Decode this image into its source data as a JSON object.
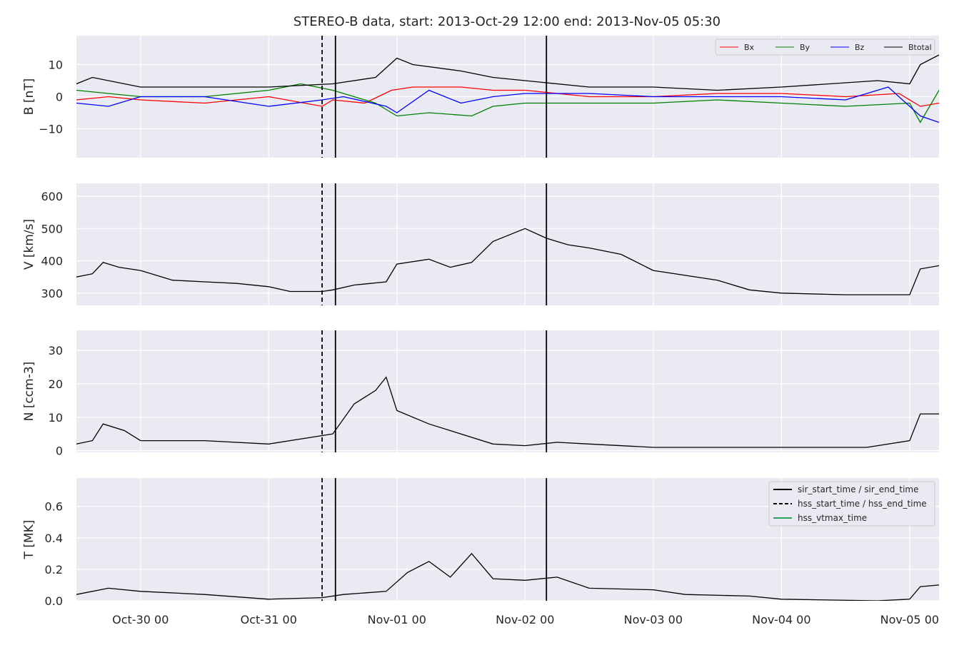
{
  "chart_data": {
    "type": "line",
    "title": "STEREO-B data, start: 2013-Oct-29 12:00  end: 2013-Nov-05 05:30",
    "x_start": "2013-10-29T12:00",
    "x_end": "2013-11-05T05:30",
    "x_ticks": [
      {
        "t": "2013-10-30T00:00",
        "label": "Oct-30 00"
      },
      {
        "t": "2013-10-31T00:00",
        "label": "Oct-31 00"
      },
      {
        "t": "2013-11-01T00:00",
        "label": "Nov-01 00"
      },
      {
        "t": "2013-11-02T00:00",
        "label": "Nov-02 00"
      },
      {
        "t": "2013-11-03T00:00",
        "label": "Nov-03 00"
      },
      {
        "t": "2013-11-04T00:00",
        "label": "Nov-04 00"
      },
      {
        "t": "2013-11-05T00:00",
        "label": "Nov-05 00"
      }
    ],
    "event_lines": [
      {
        "t": "2013-10-31T10:00",
        "style": "dashed",
        "kind": "hss_start_time"
      },
      {
        "t": "2013-10-31T12:30",
        "style": "solid",
        "kind": "sir_start_time"
      },
      {
        "t": "2013-11-02T04:00",
        "style": "solid",
        "kind": "sir_end_time"
      }
    ],
    "grid": true,
    "panels": [
      {
        "ylabel": "B [nT]",
        "ylim": [
          -19,
          19
        ],
        "yticks": [
          {
            "v": 10,
            "label": "10"
          },
          {
            "v": 0,
            "label": "0"
          },
          {
            "v": -10,
            "label": "−10"
          }
        ],
        "legend": "top-right",
        "series": [
          {
            "name": "Bx",
            "color": "#ff0000",
            "points": [
              [
                "2013-10-29T12:00",
                -1
              ],
              [
                "2013-10-29T18:00",
                0
              ],
              [
                "2013-10-30T00:00",
                -1
              ],
              [
                "2013-10-30T12:00",
                -2
              ],
              [
                "2013-10-31T00:00",
                0
              ],
              [
                "2013-10-31T10:00",
                -3
              ],
              [
                "2013-10-31T12:00",
                -1
              ],
              [
                "2013-10-31T18:00",
                -2
              ],
              [
                "2013-10-31T23:00",
                2
              ],
              [
                "2013-11-01T03:00",
                3
              ],
              [
                "2013-11-01T12:00",
                3
              ],
              [
                "2013-11-01T18:00",
                2
              ],
              [
                "2013-11-02T00:00",
                2
              ],
              [
                "2013-11-02T06:00",
                1
              ],
              [
                "2013-11-02T12:00",
                0
              ],
              [
                "2013-11-03T00:00",
                0
              ],
              [
                "2013-11-03T12:00",
                1
              ],
              [
                "2013-11-04T00:00",
                1
              ],
              [
                "2013-11-04T12:00",
                0
              ],
              [
                "2013-11-04T22:00",
                1
              ],
              [
                "2013-11-05T02:00",
                -3
              ],
              [
                "2013-11-05T05:30",
                -2
              ]
            ]
          },
          {
            "name": "By",
            "color": "#008000",
            "points": [
              [
                "2013-10-29T12:00",
                2
              ],
              [
                "2013-10-29T18:00",
                1
              ],
              [
                "2013-10-30T00:00",
                0
              ],
              [
                "2013-10-30T12:00",
                0
              ],
              [
                "2013-10-31T00:00",
                2
              ],
              [
                "2013-10-31T06:00",
                4
              ],
              [
                "2013-10-31T12:00",
                2
              ],
              [
                "2013-10-31T20:00",
                -2
              ],
              [
                "2013-11-01T00:00",
                -6
              ],
              [
                "2013-11-01T06:00",
                -5
              ],
              [
                "2013-11-01T14:00",
                -6
              ],
              [
                "2013-11-01T18:00",
                -3
              ],
              [
                "2013-11-02T00:00",
                -2
              ],
              [
                "2013-11-02T12:00",
                -2
              ],
              [
                "2013-11-03T00:00",
                -2
              ],
              [
                "2013-11-03T12:00",
                -1
              ],
              [
                "2013-11-04T00:00",
                -2
              ],
              [
                "2013-11-04T12:00",
                -3
              ],
              [
                "2013-11-05T00:00",
                -2
              ],
              [
                "2013-11-05T02:00",
                -8
              ],
              [
                "2013-11-05T05:30",
                2
              ]
            ]
          },
          {
            "name": "Bz",
            "color": "#0000ff",
            "points": [
              [
                "2013-10-29T12:00",
                -2
              ],
              [
                "2013-10-29T18:00",
                -3
              ],
              [
                "2013-10-30T00:00",
                0
              ],
              [
                "2013-10-30T12:00",
                0
              ],
              [
                "2013-10-31T00:00",
                -3
              ],
              [
                "2013-10-31T10:00",
                -1
              ],
              [
                "2013-10-31T14:00",
                0
              ],
              [
                "2013-10-31T22:00",
                -3
              ],
              [
                "2013-11-01T00:00",
                -5
              ],
              [
                "2013-11-01T06:00",
                2
              ],
              [
                "2013-11-01T12:00",
                -2
              ],
              [
                "2013-11-01T18:00",
                0
              ],
              [
                "2013-11-02T00:00",
                1
              ],
              [
                "2013-11-02T12:00",
                1
              ],
              [
                "2013-11-03T00:00",
                0
              ],
              [
                "2013-11-03T12:00",
                0
              ],
              [
                "2013-11-04T00:00",
                0
              ],
              [
                "2013-11-04T12:00",
                -1
              ],
              [
                "2013-11-04T20:00",
                3
              ],
              [
                "2013-11-05T02:00",
                -6
              ],
              [
                "2013-11-05T05:30",
                -8
              ]
            ]
          },
          {
            "name": "Btotal",
            "color": "#000000",
            "points": [
              [
                "2013-10-29T12:00",
                4
              ],
              [
                "2013-10-29T15:00",
                6
              ],
              [
                "2013-10-30T00:00",
                3
              ],
              [
                "2013-10-30T12:00",
                3
              ],
              [
                "2013-10-31T00:00",
                3
              ],
              [
                "2013-10-31T12:00",
                4
              ],
              [
                "2013-10-31T20:00",
                6
              ],
              [
                "2013-11-01T00:00",
                12
              ],
              [
                "2013-11-01T03:00",
                10
              ],
              [
                "2013-11-01T12:00",
                8
              ],
              [
                "2013-11-01T18:00",
                6
              ],
              [
                "2013-11-02T00:00",
                5
              ],
              [
                "2013-11-02T12:00",
                3
              ],
              [
                "2013-11-03T00:00",
                3
              ],
              [
                "2013-11-03T12:00",
                2
              ],
              [
                "2013-11-04T00:00",
                3
              ],
              [
                "2013-11-04T18:00",
                5
              ],
              [
                "2013-11-05T00:00",
                4
              ],
              [
                "2013-11-05T02:00",
                10
              ],
              [
                "2013-11-05T05:30",
                13
              ]
            ]
          }
        ]
      },
      {
        "ylabel": "V [km/s]",
        "ylim": [
          262,
          640
        ],
        "yticks": [
          {
            "v": 600,
            "label": "600"
          },
          {
            "v": 500,
            "label": "500"
          },
          {
            "v": 400,
            "label": "400"
          },
          {
            "v": 300,
            "label": "300"
          }
        ],
        "series": [
          {
            "name": "",
            "color": "#000000",
            "points": [
              [
                "2013-10-29T12:00",
                350
              ],
              [
                "2013-10-29T15:00",
                360
              ],
              [
                "2013-10-29T17:00",
                395
              ],
              [
                "2013-10-29T20:00",
                380
              ],
              [
                "2013-10-30T00:00",
                370
              ],
              [
                "2013-10-30T06:00",
                340
              ],
              [
                "2013-10-30T12:00",
                335
              ],
              [
                "2013-10-30T18:00",
                330
              ],
              [
                "2013-10-31T00:00",
                320
              ],
              [
                "2013-10-31T04:00",
                305
              ],
              [
                "2013-10-31T10:00",
                305
              ],
              [
                "2013-10-31T12:00",
                310
              ],
              [
                "2013-10-31T16:00",
                325
              ],
              [
                "2013-10-31T22:00",
                335
              ],
              [
                "2013-11-01T00:00",
                390
              ],
              [
                "2013-11-01T06:00",
                405
              ],
              [
                "2013-11-01T10:00",
                380
              ],
              [
                "2013-11-01T14:00",
                395
              ],
              [
                "2013-11-01T18:00",
                460
              ],
              [
                "2013-11-02T00:00",
                500
              ],
              [
                "2013-11-02T04:00",
                470
              ],
              [
                "2013-11-02T08:00",
                450
              ],
              [
                "2013-11-02T12:00",
                440
              ],
              [
                "2013-11-02T18:00",
                420
              ],
              [
                "2013-11-03T00:00",
                370
              ],
              [
                "2013-11-03T12:00",
                340
              ],
              [
                "2013-11-03T18:00",
                310
              ],
              [
                "2013-11-04T00:00",
                300
              ],
              [
                "2013-11-04T12:00",
                295
              ],
              [
                "2013-11-05T00:00",
                295
              ],
              [
                "2013-11-05T02:00",
                375
              ],
              [
                "2013-11-05T05:30",
                385
              ]
            ]
          }
        ]
      },
      {
        "ylabel": "N [ccm-3]",
        "ylim": [
          -0.5,
          36
        ],
        "yticks": [
          {
            "v": 30,
            "label": "30"
          },
          {
            "v": 20,
            "label": "20"
          },
          {
            "v": 10,
            "label": "10"
          },
          {
            "v": 0,
            "label": "0"
          }
        ],
        "series": [
          {
            "name": "",
            "color": "#000000",
            "points": [
              [
                "2013-10-29T12:00",
                2
              ],
              [
                "2013-10-29T15:00",
                3
              ],
              [
                "2013-10-29T17:00",
                8
              ],
              [
                "2013-10-29T21:00",
                6
              ],
              [
                "2013-10-30T00:00",
                3
              ],
              [
                "2013-10-30T12:00",
                3
              ],
              [
                "2013-10-31T00:00",
                2
              ],
              [
                "2013-10-31T08:00",
                4
              ],
              [
                "2013-10-31T12:00",
                5
              ],
              [
                "2013-10-31T16:00",
                14
              ],
              [
                "2013-10-31T20:00",
                18
              ],
              [
                "2013-10-31T22:00",
                22
              ],
              [
                "2013-11-01T00:00",
                12
              ],
              [
                "2013-11-01T06:00",
                8
              ],
              [
                "2013-11-01T12:00",
                5
              ],
              [
                "2013-11-01T18:00",
                2
              ],
              [
                "2013-11-02T00:00",
                1.5
              ],
              [
                "2013-11-02T06:00",
                2.5
              ],
              [
                "2013-11-02T12:00",
                2
              ],
              [
                "2013-11-03T00:00",
                1
              ],
              [
                "2013-11-04T00:00",
                1
              ],
              [
                "2013-11-04T16:00",
                1
              ],
              [
                "2013-11-05T00:00",
                3
              ],
              [
                "2013-11-05T02:00",
                11
              ],
              [
                "2013-11-05T05:30",
                11
              ]
            ]
          }
        ]
      },
      {
        "ylabel": "T [MK]",
        "ylim": [
          0,
          0.78
        ],
        "yticks": [
          {
            "v": 0.6,
            "label": "0.6"
          },
          {
            "v": 0.4,
            "label": "0.4"
          },
          {
            "v": 0.2,
            "label": "0.2"
          },
          {
            "v": 0.0,
            "label": "0.0"
          }
        ],
        "legend": "top-right",
        "legend_items": [
          {
            "label": "sir_start_time / sir_end_time",
            "color": "#000000",
            "style": "solid"
          },
          {
            "label": "hss_start_time / hss_end_time",
            "color": "#000000",
            "style": "dashed"
          },
          {
            "label": "hss_vtmax_time",
            "color": "#2ca25f",
            "style": "solid"
          }
        ],
        "series": [
          {
            "name": "",
            "color": "#000000",
            "points": [
              [
                "2013-10-29T12:00",
                0.04
              ],
              [
                "2013-10-29T18:00",
                0.08
              ],
              [
                "2013-10-30T00:00",
                0.06
              ],
              [
                "2013-10-30T12:00",
                0.04
              ],
              [
                "2013-10-31T00:00",
                0.01
              ],
              [
                "2013-10-31T10:00",
                0.02
              ],
              [
                "2013-10-31T14:00",
                0.04
              ],
              [
                "2013-10-31T22:00",
                0.06
              ],
              [
                "2013-11-01T02:00",
                0.18
              ],
              [
                "2013-11-01T06:00",
                0.25
              ],
              [
                "2013-11-01T10:00",
                0.15
              ],
              [
                "2013-11-01T14:00",
                0.3
              ],
              [
                "2013-11-01T18:00",
                0.14
              ],
              [
                "2013-11-02T00:00",
                0.13
              ],
              [
                "2013-11-02T06:00",
                0.15
              ],
              [
                "2013-11-02T12:00",
                0.08
              ],
              [
                "2013-11-03T00:00",
                0.07
              ],
              [
                "2013-11-03T06:00",
                0.04
              ],
              [
                "2013-11-03T18:00",
                0.03
              ],
              [
                "2013-11-04T00:00",
                0.01
              ],
              [
                "2013-11-04T18:00",
                0.0
              ],
              [
                "2013-11-05T00:00",
                0.01
              ],
              [
                "2013-11-05T02:00",
                0.09
              ],
              [
                "2013-11-05T05:30",
                0.1
              ]
            ]
          }
        ]
      }
    ]
  }
}
